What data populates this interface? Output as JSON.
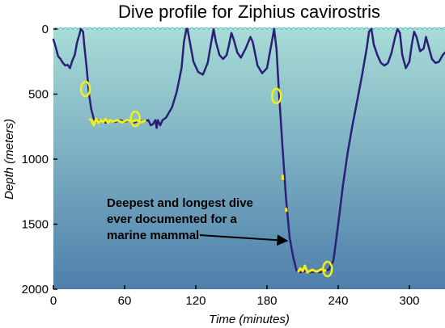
{
  "chart_data": {
    "type": "line",
    "title": "Dive profile for Ziphius cavirostris",
    "xlabel": "Time (minutes)",
    "ylabel": "Depth (meters)",
    "xlim": [
      0,
      330
    ],
    "ylim": [
      2000,
      0
    ],
    "x_ticks": [
      0,
      60,
      120,
      180,
      240,
      300
    ],
    "y_ticks": [
      0,
      500,
      1000,
      1500,
      2000
    ],
    "grid": false,
    "colors": {
      "line": "#2b1f7a",
      "highlight": "#f2ee1a",
      "water_top": "#a7dcd6",
      "water_bottom": "#4e7fab",
      "surface_wave": "#5fb8c2"
    },
    "series": [
      {
        "values": [
          [
            0,
            80
          ],
          [
            2,
            140
          ],
          [
            4,
            210
          ],
          [
            6,
            230
          ],
          [
            8,
            260
          ],
          [
            10,
            280
          ],
          [
            12,
            275
          ],
          [
            14,
            300
          ],
          [
            16,
            240
          ],
          [
            18,
            200
          ],
          [
            20,
            100
          ],
          [
            22,
            40
          ],
          [
            23,
            0
          ],
          [
            25,
            20
          ],
          [
            26,
            120
          ],
          [
            28,
            300
          ],
          [
            30,
            500
          ],
          [
            32,
            620
          ],
          [
            34,
            690
          ],
          [
            36,
            710
          ],
          [
            40,
            700
          ],
          [
            44,
            720
          ],
          [
            48,
            705
          ],
          [
            52,
            715
          ],
          [
            56,
            700
          ],
          [
            60,
            712
          ],
          [
            64,
            703
          ],
          [
            68,
            718
          ],
          [
            72,
            705
          ],
          [
            76,
            710
          ],
          [
            80,
            700
          ],
          [
            82,
            740
          ],
          [
            84,
            730
          ],
          [
            86,
            700
          ],
          [
            87,
            760
          ],
          [
            88,
            700
          ],
          [
            90,
            740
          ],
          [
            92,
            700
          ],
          [
            95,
            680
          ],
          [
            100,
            600
          ],
          [
            104,
            480
          ],
          [
            108,
            300
          ],
          [
            110,
            100
          ],
          [
            112,
            0
          ],
          [
            113,
            0
          ],
          [
            115,
            100
          ],
          [
            118,
            250
          ],
          [
            122,
            330
          ],
          [
            126,
            350
          ],
          [
            130,
            260
          ],
          [
            133,
            100
          ],
          [
            135,
            0
          ],
          [
            137,
            100
          ],
          [
            140,
            200
          ],
          [
            143,
            230
          ],
          [
            146,
            200
          ],
          [
            148,
            120
          ],
          [
            150,
            30
          ],
          [
            152,
            80
          ],
          [
            155,
            180
          ],
          [
            158,
            220
          ],
          [
            162,
            150
          ],
          [
            166,
            60
          ],
          [
            168,
            100
          ],
          [
            172,
            280
          ],
          [
            176,
            340
          ],
          [
            180,
            300
          ],
          [
            184,
            100
          ],
          [
            186,
            0
          ],
          [
            188,
            150
          ],
          [
            190,
            480
          ],
          [
            193,
            900
          ],
          [
            196,
            1300
          ],
          [
            199,
            1600
          ],
          [
            202,
            1750
          ],
          [
            205,
            1860
          ],
          [
            208,
            1870
          ],
          [
            212,
            1860
          ],
          [
            216,
            1870
          ],
          [
            220,
            1865
          ],
          [
            224,
            1870
          ],
          [
            228,
            1860
          ],
          [
            232,
            1850
          ],
          [
            236,
            1780
          ],
          [
            240,
            1500
          ],
          [
            244,
            1200
          ],
          [
            248,
            950
          ],
          [
            252,
            740
          ],
          [
            256,
            550
          ],
          [
            260,
            360
          ],
          [
            264,
            150
          ],
          [
            266,
            20
          ],
          [
            268,
            0
          ],
          [
            270,
            120
          ],
          [
            273,
            200
          ],
          [
            276,
            260
          ],
          [
            279,
            280
          ],
          [
            282,
            260
          ],
          [
            285,
            180
          ],
          [
            288,
            60
          ],
          [
            290,
            0
          ],
          [
            292,
            30
          ],
          [
            294,
            200
          ],
          [
            297,
            300
          ],
          [
            300,
            250
          ],
          [
            302,
            120
          ],
          [
            304,
            20
          ],
          [
            306,
            60
          ],
          [
            309,
            170
          ],
          [
            312,
            150
          ],
          [
            314,
            60
          ],
          [
            316,
            130
          ],
          [
            319,
            230
          ],
          [
            322,
            260
          ],
          [
            325,
            250
          ],
          [
            328,
            200
          ],
          [
            330,
            180
          ]
        ]
      }
    ],
    "highlighted_segments": [
      {
        "values": [
          [
            30,
            690
          ],
          [
            32,
            700
          ],
          [
            34,
            740
          ],
          [
            36,
            690
          ],
          [
            38,
            720
          ],
          [
            40,
            700
          ],
          [
            42,
            715
          ],
          [
            44,
            690
          ],
          [
            46,
            720
          ],
          [
            48,
            700
          ],
          [
            50,
            712
          ],
          [
            54,
            700
          ],
          [
            58,
            718
          ],
          [
            62,
            698
          ],
          [
            66,
            712
          ],
          [
            70,
            700
          ],
          [
            74,
            716
          ],
          [
            78,
            702
          ]
        ]
      },
      {
        "values": [
          [
            193,
            1120
          ],
          [
            193.4,
            1160
          ]
        ]
      },
      {
        "values": [
          [
            196,
            1375
          ],
          [
            196.4,
            1405
          ]
        ]
      },
      {
        "values": [
          [
            206,
            1870
          ],
          [
            208,
            1840
          ],
          [
            210,
            1860
          ],
          [
            212,
            1820
          ],
          [
            214,
            1870
          ],
          [
            218,
            1850
          ],
          [
            222,
            1865
          ],
          [
            226,
            1845
          ],
          [
            230,
            1860
          ]
        ]
      }
    ],
    "markers": [
      {
        "x": 27,
        "y": 460
      },
      {
        "x": 69,
        "y": 690
      },
      {
        "x": 188,
        "y": 515
      },
      {
        "x": 231,
        "y": 1845
      }
    ],
    "annotations": [
      {
        "text": "Deepest and longest dive"
      },
      {
        "text": "ever documented for a"
      },
      {
        "text": "marine mammal"
      }
    ]
  }
}
